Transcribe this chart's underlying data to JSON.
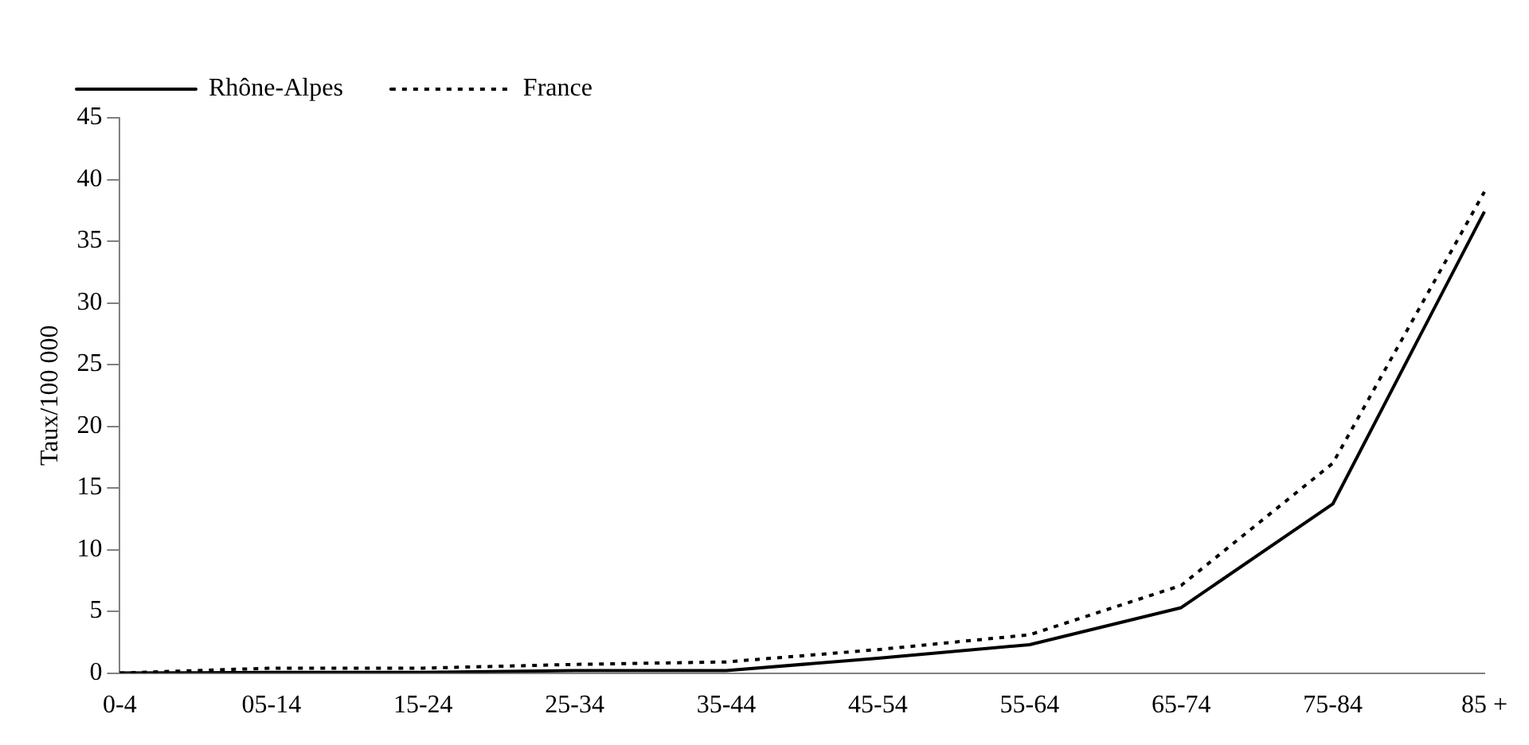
{
  "chart_data": {
    "type": "line",
    "ylabel": "Taux/100 000",
    "categories": [
      "0-4",
      "05-14",
      "15-24",
      "25-34",
      "35-44",
      "45-54",
      "55-64",
      "65-74",
      "75-84",
      "85 +"
    ],
    "series": [
      {
        "name": "Rhône-Alpes",
        "color": "#000000",
        "line_style": "solid",
        "values": [
          0,
          0.05,
          0.05,
          0.2,
          0.2,
          1.2,
          2.3,
          5.3,
          13.7,
          37.4
        ]
      },
      {
        "name": "France",
        "color": "#000000",
        "line_style": "dotted",
        "values": [
          0,
          0.4,
          0.4,
          0.7,
          0.9,
          1.9,
          3.1,
          7.1,
          17.0,
          39.0
        ]
      }
    ],
    "ylim": [
      0,
      45
    ],
    "yticks": [
      0,
      5,
      10,
      15,
      20,
      25,
      30,
      35,
      40,
      45
    ],
    "grid": false,
    "legend": "top left",
    "marker": "none"
  }
}
